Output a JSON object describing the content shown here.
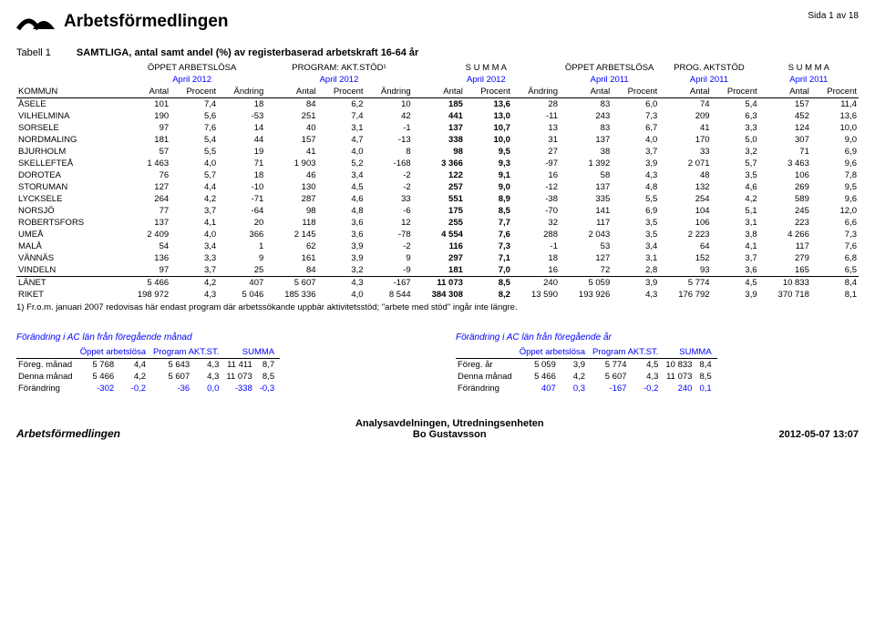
{
  "header": {
    "org_name": "Arbetsförmedlingen",
    "page_label": "Sida 1 av 18"
  },
  "title_row": {
    "label": "Tabell 1",
    "title": "SAMTLIGA, antal samt andel (%) av registerbaserad arbetskraft 16-64 år"
  },
  "table": {
    "group_headers": [
      "ÖPPET ARBETSLÖSA",
      "PROGRAM: AKT.STÖD¹",
      "S U M M A",
      "ÖPPET ARBETSLÖSA",
      "PROG. AKTSTÖD",
      "S U M M A"
    ],
    "period_headers": [
      "April 2012",
      "April 2012",
      "April 2012",
      "April 2011",
      "April 2011",
      "April 2011"
    ],
    "left_label": "KOMMUN",
    "sub_headers_3": [
      "Antal",
      "Procent",
      "Ändring"
    ],
    "sub_headers_2": [
      "Antal",
      "Procent"
    ],
    "rows": [
      {
        "n": "ÅSELE",
        "v": [
          "101",
          "7,4",
          "18",
          "84",
          "6,2",
          "10",
          "185",
          "13,6",
          "28",
          "83",
          "6,0",
          "74",
          "5,4",
          "157",
          "11,4"
        ]
      },
      {
        "n": "VILHELMINA",
        "v": [
          "190",
          "5,6",
          "-53",
          "251",
          "7,4",
          "42",
          "441",
          "13,0",
          "-11",
          "243",
          "7,3",
          "209",
          "6,3",
          "452",
          "13,6"
        ]
      },
      {
        "n": "SORSELE",
        "v": [
          "97",
          "7,6",
          "14",
          "40",
          "3,1",
          "-1",
          "137",
          "10,7",
          "13",
          "83",
          "6,7",
          "41",
          "3,3",
          "124",
          "10,0"
        ]
      },
      {
        "n": "NORDMALING",
        "v": [
          "181",
          "5,4",
          "44",
          "157",
          "4,7",
          "-13",
          "338",
          "10,0",
          "31",
          "137",
          "4,0",
          "170",
          "5,0",
          "307",
          "9,0"
        ]
      },
      {
        "n": "BJURHOLM",
        "v": [
          "57",
          "5,5",
          "19",
          "41",
          "4,0",
          "8",
          "98",
          "9,5",
          "27",
          "38",
          "3,7",
          "33",
          "3,2",
          "71",
          "6,9"
        ]
      },
      {
        "n": "SKELLEFTEÅ",
        "v": [
          "1 463",
          "4,0",
          "71",
          "1 903",
          "5,2",
          "-168",
          "3 366",
          "9,3",
          "-97",
          "1 392",
          "3,9",
          "2 071",
          "5,7",
          "3 463",
          "9,6"
        ]
      },
      {
        "n": "DOROTEA",
        "v": [
          "76",
          "5,7",
          "18",
          "46",
          "3,4",
          "-2",
          "122",
          "9,1",
          "16",
          "58",
          "4,3",
          "48",
          "3,5",
          "106",
          "7,8"
        ]
      },
      {
        "n": "STORUMAN",
        "v": [
          "127",
          "4,4",
          "-10",
          "130",
          "4,5",
          "-2",
          "257",
          "9,0",
          "-12",
          "137",
          "4,8",
          "132",
          "4,6",
          "269",
          "9,5"
        ]
      },
      {
        "n": "LYCKSELE",
        "v": [
          "264",
          "4,2",
          "-71",
          "287",
          "4,6",
          "33",
          "551",
          "8,9",
          "-38",
          "335",
          "5,5",
          "254",
          "4,2",
          "589",
          "9,6"
        ]
      },
      {
        "n": "NORSJÖ",
        "v": [
          "77",
          "3,7",
          "-64",
          "98",
          "4,8",
          "-6",
          "175",
          "8,5",
          "-70",
          "141",
          "6,9",
          "104",
          "5,1",
          "245",
          "12,0"
        ]
      },
      {
        "n": "ROBERTSFORS",
        "v": [
          "137",
          "4,1",
          "20",
          "118",
          "3,6",
          "12",
          "255",
          "7,7",
          "32",
          "117",
          "3,5",
          "106",
          "3,1",
          "223",
          "6,6"
        ]
      },
      {
        "n": "UMEÅ",
        "v": [
          "2 409",
          "4,0",
          "366",
          "2 145",
          "3,6",
          "-78",
          "4 554",
          "7,6",
          "288",
          "2 043",
          "3,5",
          "2 223",
          "3,8",
          "4 266",
          "7,3"
        ]
      },
      {
        "n": "MALÅ",
        "v": [
          "54",
          "3,4",
          "1",
          "62",
          "3,9",
          "-2",
          "116",
          "7,3",
          "-1",
          "53",
          "3,4",
          "64",
          "4,1",
          "117",
          "7,6"
        ]
      },
      {
        "n": "VÄNNÄS",
        "v": [
          "136",
          "3,3",
          "9",
          "161",
          "3,9",
          "9",
          "297",
          "7,1",
          "18",
          "127",
          "3,1",
          "152",
          "3,7",
          "279",
          "6,8"
        ]
      },
      {
        "n": "VINDELN",
        "v": [
          "97",
          "3,7",
          "25",
          "84",
          "3,2",
          "-9",
          "181",
          "7,0",
          "16",
          "72",
          "2,8",
          "93",
          "3,6",
          "165",
          "6,5"
        ]
      }
    ],
    "summary": [
      {
        "n": "LÄNET",
        "v": [
          "5 466",
          "4,2",
          "407",
          "5 607",
          "4,3",
          "-167",
          "11 073",
          "8,5",
          "240",
          "5 059",
          "3,9",
          "5 774",
          "4,5",
          "10 833",
          "8,4"
        ]
      },
      {
        "n": "RIKET",
        "v": [
          "198 972",
          "4,3",
          "5 046",
          "185 336",
          "4,0",
          "8 544",
          "384 308",
          "8,2",
          "13 590",
          "193 926",
          "4,3",
          "176 792",
          "3,9",
          "370 718",
          "8,1"
        ]
      }
    ],
    "footnote": "1) Fr.o.m. januari 2007 redovisas här endast program där arbetssökande uppbär aktivitetsstöd; \"arbete med stöd\" ingår inte längre.",
    "bold_cols": [
      7,
      8
    ]
  },
  "change_month": {
    "title": "Förändring i AC län från föregående månad",
    "cols": [
      "Öppet arbetslösa",
      "Program AKT.ST.",
      "SUMMA"
    ],
    "rows": [
      {
        "l": "Föreg. månad",
        "v": [
          "5 768",
          "4,4",
          "5 643",
          "4,3",
          "11 411",
          "8,7"
        ]
      },
      {
        "l": "Denna månad",
        "v": [
          "5 466",
          "4,2",
          "5 607",
          "4,3",
          "11 073",
          "8,5"
        ]
      },
      {
        "l": "Förändring",
        "v": [
          "-302",
          "-0,2",
          "-36",
          "0,0",
          "-338",
          "-0,3"
        ],
        "blue": true
      }
    ]
  },
  "change_year": {
    "title": "Förändring i AC län från föregående år",
    "cols": [
      "Öppet arbetslösa",
      "Program AKT.ST.",
      "SUMMA"
    ],
    "rows": [
      {
        "l": "Föreg. år",
        "v": [
          "5 059",
          "3,9",
          "5 774",
          "4,5",
          "10 833",
          "8,4"
        ]
      },
      {
        "l": "Denna månad",
        "v": [
          "5 466",
          "4,2",
          "5 607",
          "4,3",
          "11 073",
          "8,5"
        ]
      },
      {
        "l": "Förändring",
        "v": [
          "407",
          "0,3",
          "-167",
          "-0,2",
          "240",
          "0,1"
        ],
        "blue": true
      }
    ]
  },
  "footer": {
    "left": "Arbetsförmedlingen",
    "center1": "Analysavdelningen, Utredningsenheten",
    "center2": "Bo Gustavsson",
    "right": "2012-05-07 13:07"
  }
}
